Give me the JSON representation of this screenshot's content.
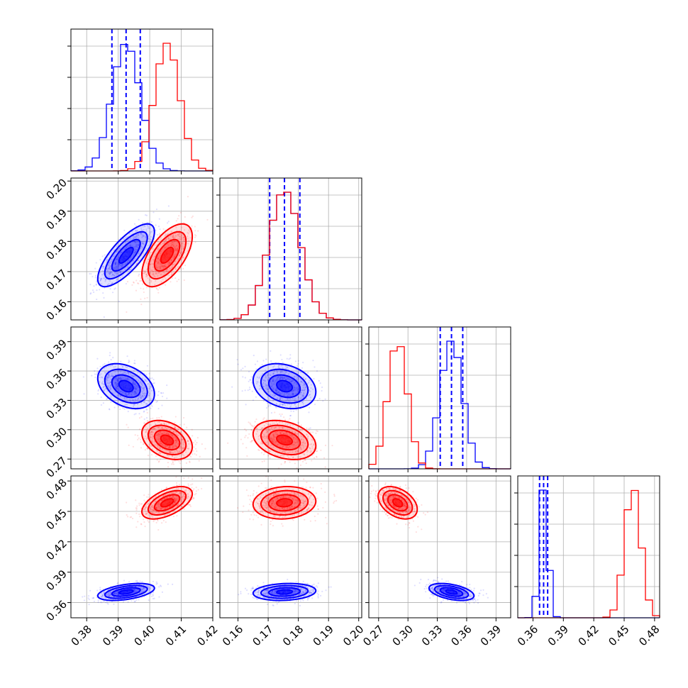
{
  "colors": {
    "blue": "#0000ff",
    "red": "#ff0000",
    "grid": "#b0b0b0",
    "axis": "#000000"
  },
  "chart_data": {
    "type": "corner",
    "grid": true,
    "parameters": [
      {
        "range": [
          0.375,
          0.42
        ],
        "ticks": [
          0.38,
          0.39,
          0.4,
          0.41,
          0.42
        ],
        "tick_labels": [
          "0.38",
          "0.39",
          "0.40",
          "0.41",
          "0.42"
        ]
      },
      {
        "range": [
          0.154,
          0.201
        ],
        "ticks": [
          0.16,
          0.17,
          0.18,
          0.19,
          0.2
        ],
        "tick_labels": [
          "0.16",
          "0.17",
          "0.18",
          "0.19",
          "0.20"
        ]
      },
      {
        "range": [
          0.26,
          0.405
        ],
        "ticks": [
          0.27,
          0.3,
          0.33,
          0.36,
          0.39
        ],
        "tick_labels": [
          "0.27",
          "0.30",
          "0.33",
          "0.36",
          "0.39"
        ]
      },
      {
        "range": [
          0.345,
          0.485
        ],
        "ticks": [
          0.36,
          0.39,
          0.42,
          0.45,
          0.48
        ],
        "tick_labels": [
          "0.36",
          "0.39",
          "0.42",
          "0.45",
          "0.48"
        ]
      }
    ],
    "series": [
      {
        "color": "blue",
        "mean": [
          0.3925,
          0.1754,
          0.3445,
          0.3705
        ],
        "std": [
          0.0045,
          0.0052,
          0.0115,
          0.0042
        ],
        "corr": {
          "0-1": 0.75,
          "0-2": -0.35,
          "0-3": 0.45,
          "1-2": -0.25,
          "1-3": 0.15,
          "2-3": -0.45
        },
        "quantiles": [
          [
            0.388,
            0.3925,
            0.397
          ],
          [
            0.1705,
            0.1754,
            0.1805
          ],
          [
            0.333,
            0.3445,
            0.356
          ],
          [
            0.3665,
            0.3705,
            0.3745
          ]
        ]
      },
      {
        "color": "red",
        "mean": [
          0.4055,
          0.1754,
          0.2895,
          0.4585
        ],
        "std": [
          0.004,
          0.0052,
          0.01,
          0.008
        ],
        "corr": {
          "0-1": 0.6,
          "0-2": -0.35,
          "0-3": 0.55,
          "1-2": -0.3,
          "1-3": 0.1,
          "2-3": -0.4
        }
      }
    ]
  }
}
